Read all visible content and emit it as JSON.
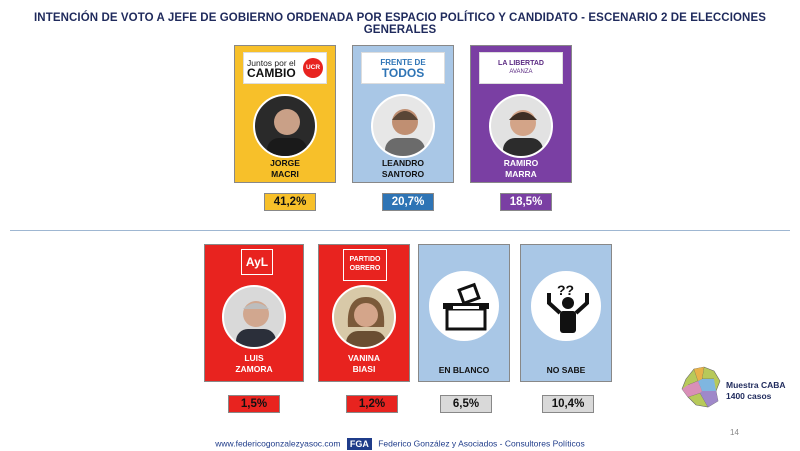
{
  "title": "INTENCIÓN DE VOTO A JEFE DE GOBIERNO ORDENADA POR ESPACIO POLÍTICO Y CANDIDATO - ESCENARIO 2 DE ELECCIONES GENERALES",
  "top_row": [
    {
      "party_line1": "Juntos por el",
      "party_line2": "CAMBIO",
      "party_badge": "UCR",
      "name_line1": "JORGE",
      "name_line2": "MACRI",
      "percent": "41,2%",
      "color": "#f7c02a",
      "pct_bg": "#f7c02a"
    },
    {
      "party_line1": "FRENTE DE",
      "party_line2": "TODOS",
      "name_line1": "LEANDRO",
      "name_line2": "SANTORO",
      "percent": "20,7%",
      "color": "#a9c7e6",
      "pct_bg": "#2e74b5"
    },
    {
      "party_line1": "LA LIBERTAD",
      "party_line2": "AVANZA",
      "name_line1": "RAMIRO",
      "name_line2": "MARRA",
      "percent": "18,5%",
      "color": "#7a3fa3",
      "pct_bg": "#7a3fa3"
    }
  ],
  "bottom_row": [
    {
      "party_line1": "AyL",
      "name_line1": "LUIS",
      "name_line2": "ZAMORA",
      "percent": "1,5%",
      "color": "#e8231f",
      "pct_bg": "#e8231f"
    },
    {
      "party_line1": "PARTIDO",
      "party_line2": "OBRERO",
      "name_line1": "VANINA",
      "name_line2": "BIASI",
      "percent": "1,2%",
      "color": "#e8231f",
      "pct_bg": "#e8231f"
    },
    {
      "name_line1": "EN BLANCO",
      "percent": "6,5%",
      "color": "#a9c7e6",
      "pct_bg": "#d9d9d9"
    },
    {
      "name_line1": "NO SABE",
      "percent": "10,4%",
      "color": "#a9c7e6",
      "pct_bg": "#d9d9d9"
    }
  ],
  "sample": {
    "line1": "Muestra CABA",
    "line2": "1400 casos"
  },
  "page_number": "14",
  "footer": {
    "url": "www.federicogonzalezyasoc.com",
    "logo": "FGA",
    "company": "Federico González y Asociados - Consultores Políticos"
  }
}
